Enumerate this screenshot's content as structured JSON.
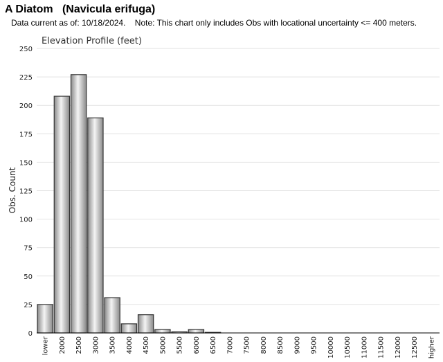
{
  "header": {
    "title": "A Diatom   (Navicula erifuga)",
    "subtitle": "Data current as of: 10/18/2024.    Note: This chart only includes Obs with locational uncertainty <= 400 meters."
  },
  "colors": {
    "bar_light": "#f4f4f4",
    "bar_dark": "#8a8a8a",
    "bar_stroke": "#333333",
    "grid": "#e2e2e2",
    "axis": "#000000"
  },
  "chart_data": {
    "type": "bar",
    "title": "Elevation Profile (feet)",
    "xlabel": "",
    "ylabel": "Obs. Count",
    "ylim": [
      0,
      250
    ],
    "yticks": [
      0,
      25,
      50,
      75,
      100,
      125,
      150,
      175,
      200,
      225,
      250
    ],
    "grid": true,
    "categories": [
      "lower",
      "2000",
      "2500",
      "3000",
      "3500",
      "4000",
      "4500",
      "5000",
      "5500",
      "6000",
      "6500",
      "7000",
      "7500",
      "8000",
      "8500",
      "9000",
      "9500",
      "10000",
      "10500",
      "11000",
      "11500",
      "12000",
      "12500",
      "higher"
    ],
    "values": [
      25,
      208,
      227,
      189,
      31,
      8,
      16,
      3,
      1,
      3,
      0.5,
      0,
      0,
      0,
      0,
      0,
      0,
      0,
      0,
      0,
      0,
      0,
      0,
      0
    ]
  }
}
